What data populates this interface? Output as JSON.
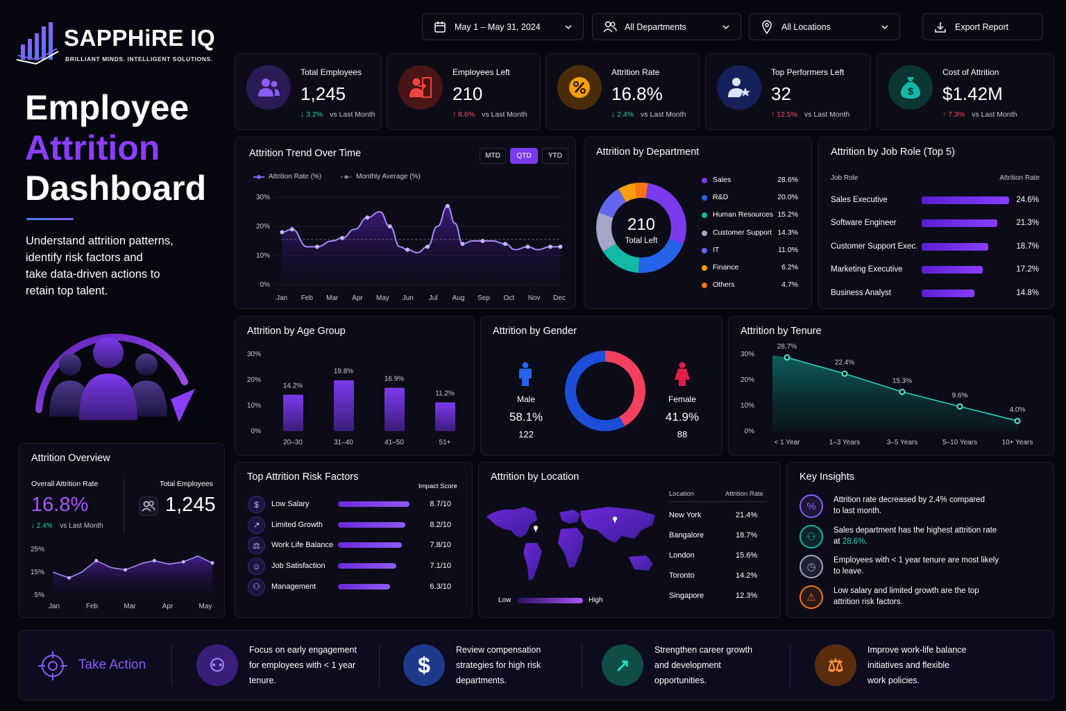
{
  "brand": {
    "name": "SAPPHiRE IQ",
    "tagline": "BRILLIANT MINDS. INTELLIGENT SOLUTIONS."
  },
  "hero": {
    "line1": "Employee",
    "line2": "Attrition",
    "line3": "Dashboard",
    "desc1": "Understand attrition patterns,",
    "desc2": "identify risk factors and",
    "desc3": "take data-driven actions to",
    "desc4": "retain top talent."
  },
  "filters": {
    "date": "May 1 – May 31, 2024",
    "department": "All Departments",
    "location": "All Locations",
    "export": "Export Report"
  },
  "kpis": [
    {
      "title": "Total Employees",
      "value": "1,245",
      "delta": "3.2%",
      "dir": "down",
      "note": "vs Last Month",
      "icon": "users-icon",
      "color": "#8b5cf6"
    },
    {
      "title": "Employees Left",
      "value": "210",
      "delta": "8.6%",
      "dir": "up",
      "note": "vs Last Month",
      "icon": "user-exit-icon",
      "color": "#ef4444"
    },
    {
      "title": "Attrition Rate",
      "value": "16.8%",
      "delta": "2.4%",
      "dir": "down",
      "note": "vs Last Month",
      "icon": "percent-icon",
      "color": "#f59e0b"
    },
    {
      "title": "Top Performers Left",
      "value": "32",
      "delta": "12.5%",
      "dir": "up",
      "note": "vs Last Month",
      "icon": "user-star-icon",
      "color": "#4f6bff"
    },
    {
      "title": "Cost of Attrition",
      "value": "$1.42M",
      "delta": "7.3%",
      "dir": "up",
      "note": "vs Last Month",
      "icon": "money-bag-icon",
      "color": "#14b8a6"
    }
  ],
  "trend": {
    "title": "Attrition Trend Over Time",
    "tabs": [
      "MTD",
      "QTD",
      "YTD"
    ],
    "active_tab": "QTD",
    "legend_rate": "Attrition Rate (%)",
    "legend_avg": "Monthly Average (%)"
  },
  "department": {
    "title": "Attrition by Department",
    "center_value": "210",
    "center_label": "Total Left",
    "items": [
      {
        "name": "Sales",
        "value": "28.6%",
        "color": "#7c3aed"
      },
      {
        "name": "R&D",
        "value": "20.0%",
        "color": "#2563eb"
      },
      {
        "name": "Human Resources",
        "value": "15.2%",
        "color": "#14b8a6"
      },
      {
        "name": "Customer Support",
        "value": "14.3%",
        "color": "#a5a5c8"
      },
      {
        "name": "IT",
        "value": "11.0%",
        "color": "#6366f1"
      },
      {
        "name": "Finance",
        "value": "6.2%",
        "color": "#f59e0b"
      },
      {
        "name": "Others",
        "value": "4.7%",
        "color": "#f97316"
      }
    ]
  },
  "jobrole": {
    "title": "Attrition by Job Role (Top 5)",
    "col1": "Job Role",
    "col2": "Attrition Rate",
    "items": [
      {
        "name": "Sales Executive",
        "value": "24.6%",
        "pct": 24.6
      },
      {
        "name": "Software Engineer",
        "value": "21.3%",
        "pct": 21.3
      },
      {
        "name": "Customer Support Exec.",
        "value": "18.7%",
        "pct": 18.7
      },
      {
        "name": "Marketing Executive",
        "value": "17.2%",
        "pct": 17.2
      },
      {
        "name": "Business Analyst",
        "value": "14.8%",
        "pct": 14.8
      }
    ]
  },
  "age": {
    "title": "Attrition by Age Group"
  },
  "gender": {
    "title": "Attrition by Gender",
    "male_label": "Male",
    "male_pct": "58.1%",
    "male_count": "122",
    "female_label": "Female",
    "female_pct": "41.9%",
    "female_count": "88"
  },
  "tenure": {
    "title": "Attrition by Tenure"
  },
  "overview": {
    "title": "Attrition Overview",
    "rate_label": "Overall Attrition Rate",
    "rate": "16.8%",
    "delta": "2.4%",
    "note": "vs Last Month",
    "emp_label": "Total Employees",
    "emp": "1,245"
  },
  "risk": {
    "title": "Top Attrition Risk Factors",
    "col": "Impact Score",
    "items": [
      {
        "name": "Low Salary",
        "score": "8.7/10",
        "v": 8.7,
        "icon": "dollar-icon"
      },
      {
        "name": "Limited Growth",
        "score": "8.2/10",
        "v": 8.2,
        "icon": "growth-icon"
      },
      {
        "name": "Work Life Balance",
        "score": "7.8/10",
        "v": 7.8,
        "icon": "balance-icon"
      },
      {
        "name": "Job Satisfaction",
        "score": "7.1/10",
        "v": 7.1,
        "icon": "smile-icon"
      },
      {
        "name": "Management",
        "score": "6.3/10",
        "v": 6.3,
        "icon": "people-icon"
      }
    ]
  },
  "location": {
    "title": "Attrition by Location",
    "col1": "Location",
    "col2": "Attrition Rate",
    "low": "Low",
    "high": "High",
    "items": [
      {
        "name": "New York",
        "value": "21.4%"
      },
      {
        "name": "Bangalore",
        "value": "18.7%"
      },
      {
        "name": "London",
        "value": "15.6%"
      },
      {
        "name": "Toronto",
        "value": "14.2%"
      },
      {
        "name": "Singapore",
        "value": "12.3%"
      }
    ]
  },
  "insights": {
    "title": "Key Insights",
    "items": [
      {
        "a": "Attrition rate decreased by 2.4% compared",
        "b": "to last month.",
        "color": "#8b5cf6",
        "icon": "percent-down-icon"
      },
      {
        "a": "Sales department has the highest attrition rate",
        "b": "at ",
        "hl": "28.6%",
        "b2": ".",
        "color": "#14b8a6",
        "icon": "team-icon"
      },
      {
        "a": "Employees with < 1 year tenure are most likely",
        "b": "to leave.",
        "color": "#a5a5c8",
        "icon": "clock-icon"
      },
      {
        "a": "Low salary and limited growth are the top",
        "b": "attrition risk factors.",
        "color": "#f97316",
        "icon": "warning-icon"
      }
    ]
  },
  "actions": {
    "title": "Take Action",
    "items": [
      {
        "l1": "Focus on early engagement",
        "l2": "for employees with < 1 year",
        "l3": "tenure.",
        "icon": "users-icon",
        "color": "#3b1d7a"
      },
      {
        "l1": "Review compensation",
        "l2": "strategies for high risk",
        "l3": "departments.",
        "icon": "dollar-icon",
        "color": "#1e3a8a"
      },
      {
        "l1": "Strengthen career growth",
        "l2": "and development",
        "l3": "opportunities.",
        "icon": "chart-growth-icon",
        "color": "#0f4d46"
      },
      {
        "l1": "Improve work-life balance",
        "l2": "initiatives and flexible",
        "l3": "work policies.",
        "icon": "balance-icon",
        "color": "#5a2c0e"
      }
    ]
  },
  "chart_data": [
    {
      "type": "line",
      "title": "Attrition Trend Over Time",
      "categories": [
        "Jan",
        "Feb",
        "Mar",
        "Apr",
        "May",
        "Jun",
        "Jul",
        "Aug",
        "Sep",
        "Oct",
        "Nov",
        "Dec"
      ],
      "x": [
        0,
        0.4,
        1,
        1.4,
        2,
        2.4,
        2.9,
        3.4,
        3.9,
        4.3,
        4.7,
        5,
        5.4,
        5.8,
        6.2,
        6.6,
        6.9,
        7.2,
        7.6,
        8,
        8.4,
        8.9,
        9.3,
        9.8,
        10.2,
        10.7,
        11.1
      ],
      "series": [
        {
          "name": "Attrition Rate (%)",
          "values": [
            18,
            19,
            13,
            13,
            15,
            16,
            19,
            23,
            25,
            20,
            13,
            12,
            11,
            13,
            20,
            27,
            21,
            14,
            15,
            15,
            15,
            14,
            12,
            13,
            12,
            13,
            13
          ]
        },
        {
          "name": "Monthly Average (%)",
          "values": [
            15.5,
            15.5,
            15.5,
            15.5,
            15.5,
            15.5,
            15.5,
            15.5,
            15.5,
            15.5,
            15.5,
            15.5,
            15.5,
            15.5,
            15.5,
            15.5,
            15.5,
            15.5,
            15.5,
            15.5,
            15.5,
            15.5,
            15.5,
            15.5,
            15.5,
            15.5,
            15.5
          ]
        }
      ],
      "yticks": [
        "0%",
        "10%",
        "20%",
        "30%"
      ],
      "ylim": [
        0,
        30
      ]
    },
    {
      "type": "pie",
      "title": "Attrition by Department",
      "categories": [
        "Sales",
        "R&D",
        "Human Resources",
        "Customer Support",
        "IT",
        "Finance",
        "Others"
      ],
      "values": [
        28.6,
        20.0,
        15.2,
        14.3,
        11.0,
        6.2,
        4.7
      ]
    },
    {
      "type": "bar",
      "title": "Attrition by Job Role (Top 5)",
      "categories": [
        "Sales Executive",
        "Software Engineer",
        "Customer Support Exec.",
        "Marketing Executive",
        "Business Analyst"
      ],
      "values": [
        24.6,
        21.3,
        18.7,
        17.2,
        14.8
      ]
    },
    {
      "type": "bar",
      "title": "Attrition by Age Group",
      "categories": [
        "20–30",
        "31–40",
        "41–50",
        "51+"
      ],
      "values": [
        14.2,
        19.8,
        16.9,
        11.2
      ],
      "labels": [
        "14.2%",
        "19.8%",
        "16.9%",
        "11.2%"
      ],
      "yticks": [
        "0%",
        "10%",
        "20%",
        "30%"
      ],
      "ylim": [
        0,
        30
      ]
    },
    {
      "type": "pie",
      "title": "Attrition by Gender",
      "categories": [
        "Male",
        "Female"
      ],
      "values": [
        58.1,
        41.9
      ]
    },
    {
      "type": "area",
      "title": "Attrition by Tenure",
      "categories": [
        "< 1 Year",
        "1–3 Years",
        "3–5 Years",
        "5–10 Years",
        "10+ Years"
      ],
      "values": [
        28.7,
        22.4,
        15.3,
        9.6,
        4.0
      ],
      "labels": [
        "28.7%",
        "22.4%",
        "15.3%",
        "9.6%",
        "4.0%"
      ],
      "yticks": [
        "0%",
        "10%",
        "20%",
        "30%"
      ],
      "ylim": [
        0,
        30
      ]
    },
    {
      "type": "area",
      "title": "Attrition Overview",
      "categories": [
        "Jan",
        "Feb",
        "Mar",
        "Apr",
        "May"
      ],
      "x": [
        0,
        0.45,
        0.8,
        1.2,
        1.6,
        2,
        2.5,
        2.8,
        3.2,
        3.6,
        4,
        4.4
      ],
      "values": [
        15,
        12.5,
        15,
        20,
        17,
        16,
        19,
        20,
        18.5,
        19.5,
        22,
        19
      ],
      "yticks": [
        "5%",
        "15%",
        "25%"
      ],
      "ylim": [
        5,
        25
      ]
    },
    {
      "type": "bar",
      "title": "Top Attrition Risk Factors",
      "categories": [
        "Low Salary",
        "Limited Growth",
        "Work Life Balance",
        "Job Satisfaction",
        "Management"
      ],
      "values": [
        8.7,
        8.2,
        7.8,
        7.1,
        6.3
      ]
    }
  ]
}
